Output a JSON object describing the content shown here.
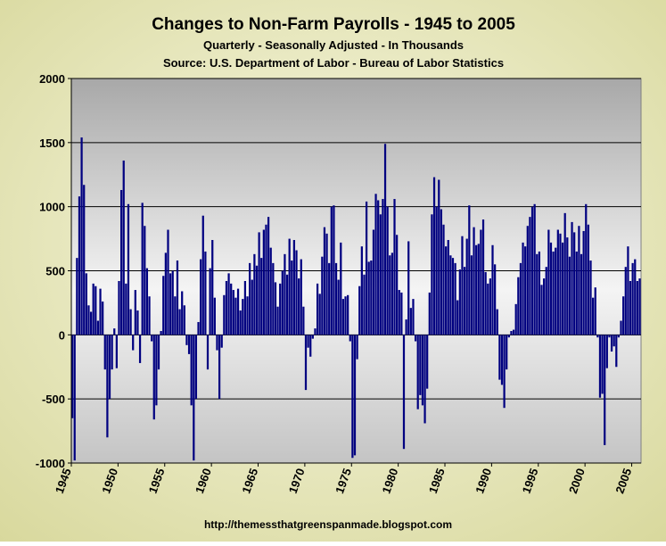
{
  "chart_data": {
    "type": "bar",
    "title": "Changes to Non-Farm Payrolls - 1945 to 2005",
    "subtitle": [
      "Quarterly - Seasonally Adjusted - In Thousands",
      "Source: U.S. Department of Labor - Bureau of Labor Statistics"
    ],
    "footer": "http://themessthatgreenspanmade.blogspot.com",
    "color": "#000080",
    "grid": true,
    "xlim": [
      1945,
      2006
    ],
    "xticks": [
      1945,
      1950,
      1955,
      1960,
      1965,
      1970,
      1975,
      1980,
      1985,
      1990,
      1995,
      2000,
      2005
    ],
    "ylim": [
      -1000,
      2000
    ],
    "yticks": [
      -1000,
      -500,
      0,
      500,
      1000,
      1500,
      2000
    ],
    "x": [
      1945,
      1945.25,
      1945.5,
      1945.75,
      1946,
      1946.25,
      1946.5,
      1946.75,
      1947,
      1947.25,
      1947.5,
      1947.75,
      1948,
      1948.25,
      1948.5,
      1948.75,
      1949,
      1949.25,
      1949.5,
      1949.75,
      1950,
      1950.25,
      1950.5,
      1950.75,
      1951,
      1951.25,
      1951.5,
      1951.75,
      1952,
      1952.25,
      1952.5,
      1952.75,
      1953,
      1953.25,
      1953.5,
      1953.75,
      1954,
      1954.25,
      1954.5,
      1954.75,
      1955,
      1955.25,
      1955.5,
      1955.75,
      1956,
      1956.25,
      1956.5,
      1956.75,
      1957,
      1957.25,
      1957.5,
      1957.75,
      1958,
      1958.25,
      1958.5,
      1958.75,
      1959,
      1959.25,
      1959.5,
      1959.75,
      1960,
      1960.25,
      1960.5,
      1960.75,
      1961,
      1961.25,
      1961.5,
      1961.75,
      1962,
      1962.25,
      1962.5,
      1962.75,
      1963,
      1963.25,
      1963.5,
      1963.75,
      1964,
      1964.25,
      1964.5,
      1964.75,
      1965,
      1965.25,
      1965.5,
      1965.75,
      1966,
      1966.25,
      1966.5,
      1966.75,
      1967,
      1967.25,
      1967.5,
      1967.75,
      1968,
      1968.25,
      1968.5,
      1968.75,
      1969,
      1969.25,
      1969.5,
      1969.75,
      1970,
      1970.25,
      1970.5,
      1970.75,
      1971,
      1971.25,
      1971.5,
      1971.75,
      1972,
      1972.25,
      1972.5,
      1972.75,
      1973,
      1973.25,
      1973.5,
      1973.75,
      1974,
      1974.25,
      1974.5,
      1974.75,
      1975,
      1975.25,
      1975.5,
      1975.75,
      1976,
      1976.25,
      1976.5,
      1976.75,
      1977,
      1977.25,
      1977.5,
      1977.75,
      1978,
      1978.25,
      1978.5,
      1978.75,
      1979,
      1979.25,
      1979.5,
      1979.75,
      1980,
      1980.25,
      1980.5,
      1980.75,
      1981,
      1981.25,
      1981.5,
      1981.75,
      1982,
      1982.25,
      1982.5,
      1982.75,
      1983,
      1983.25,
      1983.5,
      1983.75,
      1984,
      1984.25,
      1984.5,
      1984.75,
      1985,
      1985.25,
      1985.5,
      1985.75,
      1986,
      1986.25,
      1986.5,
      1986.75,
      1987,
      1987.25,
      1987.5,
      1987.75,
      1988,
      1988.25,
      1988.5,
      1988.75,
      1989,
      1989.25,
      1989.5,
      1989.75,
      1990,
      1990.25,
      1990.5,
      1990.75,
      1991,
      1991.25,
      1991.5,
      1991.75,
      1992,
      1992.25,
      1992.5,
      1992.75,
      1993,
      1993.25,
      1993.5,
      1993.75,
      1994,
      1994.25,
      1994.5,
      1994.75,
      1995,
      1995.25,
      1995.5,
      1995.75,
      1996,
      1996.25,
      1996.5,
      1996.75,
      1997,
      1997.25,
      1997.5,
      1997.75,
      1998,
      1998.25,
      1998.5,
      1998.75,
      1999,
      1999.25,
      1999.5,
      1999.75,
      2000,
      2000.25,
      2000.5,
      2000.75,
      2001,
      2001.25,
      2001.5,
      2001.75,
      2002,
      2002.25,
      2002.5,
      2002.75,
      2003,
      2003.25,
      2003.5,
      2003.75,
      2004,
      2004.25,
      2004.5,
      2004.75,
      2005,
      2005.25,
      2005.5,
      2005.75
    ],
    "values": [
      -650,
      -980,
      600,
      1080,
      1540,
      1170,
      480,
      230,
      180,
      400,
      380,
      110,
      360,
      260,
      -270,
      -800,
      -500,
      -270,
      50,
      -260,
      420,
      1130,
      1360,
      400,
      1020,
      200,
      -120,
      350,
      190,
      -220,
      1030,
      850,
      520,
      300,
      -50,
      -660,
      -550,
      -270,
      30,
      460,
      640,
      820,
      480,
      500,
      300,
      580,
      200,
      340,
      230,
      -80,
      -150,
      -550,
      -980,
      -500,
      100,
      590,
      930,
      650,
      -270,
      520,
      740,
      290,
      -120,
      -500,
      -100,
      310,
      420,
      480,
      400,
      350,
      290,
      360,
      190,
      280,
      420,
      300,
      560,
      430,
      630,
      540,
      800,
      600,
      820,
      860,
      920,
      680,
      560,
      410,
      220,
      400,
      500,
      630,
      470,
      750,
      580,
      740,
      660,
      440,
      590,
      220,
      -430,
      -100,
      -170,
      -30,
      50,
      400,
      320,
      610,
      840,
      790,
      560,
      1000,
      1010,
      560,
      430,
      720,
      280,
      300,
      310,
      -50,
      -960,
      -940,
      -190,
      380,
      690,
      470,
      1040,
      570,
      580,
      820,
      1100,
      1050,
      940,
      1060,
      1490,
      1000,
      620,
      640,
      1060,
      780,
      350,
      330,
      -890,
      120,
      730,
      210,
      280,
      -50,
      -580,
      -470,
      -550,
      -690,
      -420,
      330,
      940,
      1230,
      1000,
      1210,
      980,
      860,
      690,
      740,
      620,
      600,
      560,
      270,
      510,
      770,
      530,
      750,
      1010,
      620,
      840,
      700,
      710,
      820,
      900,
      490,
      400,
      440,
      700,
      550,
      200,
      -350,
      -390,
      -570,
      -270,
      -20,
      30,
      40,
      240,
      450,
      560,
      720,
      690,
      850,
      920,
      1000,
      1020,
      630,
      650,
      390,
      440,
      530,
      820,
      720,
      650,
      680,
      820,
      790,
      720,
      950,
      760,
      610,
      880,
      800,
      650,
      850,
      630,
      810,
      1020,
      860,
      580,
      290,
      370,
      -20,
      -490,
      -460,
      -860,
      -260,
      -20,
      -130,
      -90,
      -250,
      -20,
      110,
      300,
      530,
      690,
      420,
      560,
      590,
      420,
      440
    ]
  }
}
